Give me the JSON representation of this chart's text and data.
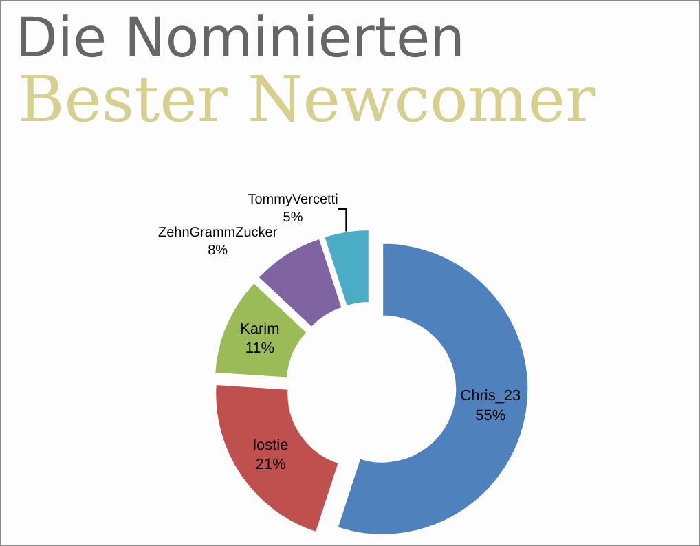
{
  "chart_data": {
    "type": "donut",
    "title": "Die Nominierten",
    "subtitle": "Bester Newcomer",
    "categories": [
      "Chris_23",
      "lostie",
      "Karim",
      "ZehnGrammZucker",
      "TommyVercetti"
    ],
    "values": [
      55,
      21,
      11,
      8,
      5
    ],
    "value_labels": [
      "55%",
      "21%",
      "11%",
      "8%",
      "5%"
    ],
    "colors": [
      "#4f81bd",
      "#c0504d",
      "#9bbb59",
      "#8064a2",
      "#4bacc6"
    ],
    "legend": false
  }
}
